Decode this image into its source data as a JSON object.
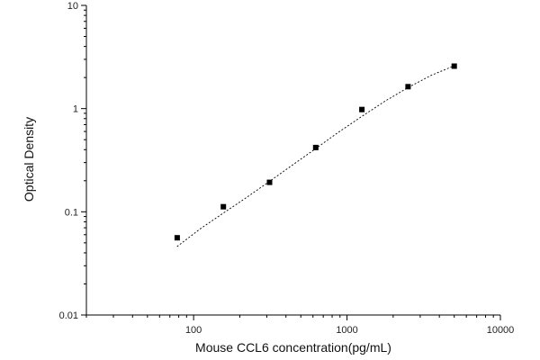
{
  "chart_data": {
    "type": "scatter",
    "title": "",
    "xlabel": "Mouse CCL6 concentration(pg/mL)",
    "ylabel": "Optical Density",
    "x_scale": "log",
    "y_scale": "log",
    "xlim": [
      20,
      10000
    ],
    "ylim": [
      0.01,
      10
    ],
    "x_ticks": [
      100,
      1000,
      10000
    ],
    "x_tick_labels": [
      "100",
      "1000",
      "10000"
    ],
    "y_ticks": [
      0.01,
      0.1,
      1,
      10
    ],
    "y_tick_labels": [
      "0.01",
      "0.1",
      "1",
      "10"
    ],
    "grid": false,
    "legend": "none",
    "series": [
      {
        "values": [
          {
            "x": 78.125,
            "y": 0.056
          },
          {
            "x": 156.25,
            "y": 0.112
          },
          {
            "x": 312.5,
            "y": 0.193
          },
          {
            "x": 625,
            "y": 0.42
          },
          {
            "x": 1250,
            "y": 0.98
          },
          {
            "x": 2500,
            "y": 1.63
          },
          {
            "x": 5000,
            "y": 2.58
          }
        ]
      }
    ],
    "fit_curve": {
      "style": "dashed",
      "points": [
        {
          "x": 78,
          "y": 0.046
        },
        {
          "x": 110,
          "y": 0.068
        },
        {
          "x": 156,
          "y": 0.097
        },
        {
          "x": 220,
          "y": 0.137
        },
        {
          "x": 312,
          "y": 0.197
        },
        {
          "x": 440,
          "y": 0.283
        },
        {
          "x": 625,
          "y": 0.41
        },
        {
          "x": 880,
          "y": 0.59
        },
        {
          "x": 1250,
          "y": 0.84
        },
        {
          "x": 1770,
          "y": 1.18
        },
        {
          "x": 2500,
          "y": 1.6
        },
        {
          "x": 3540,
          "y": 2.1
        },
        {
          "x": 5000,
          "y": 2.6
        }
      ]
    },
    "colors": {
      "axis": "#000000",
      "marker": "#000000",
      "curve": "#000000"
    }
  }
}
